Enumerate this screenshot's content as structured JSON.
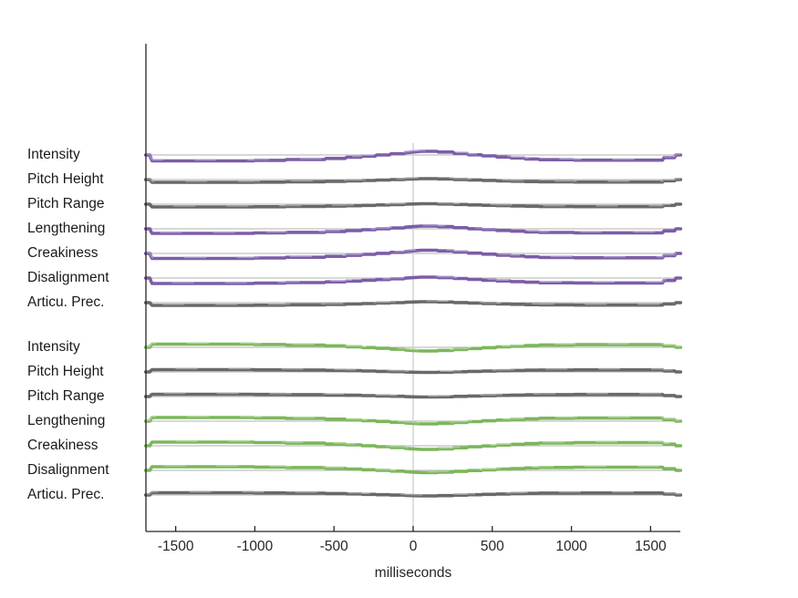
{
  "figure": {
    "xlabel": "milliseconds",
    "background": "#ffffff"
  },
  "colors": {
    "purple": "#7C5DA7",
    "purple_light": "#A594C9",
    "green": "#7BB75A",
    "green_light": "#AACF96",
    "gray": "#696969",
    "gray_light": "#9E9E9E",
    "reference_line": "#B0B0B0",
    "zero_line": "#D6D6D6",
    "axis": "#262626",
    "text": "#262626"
  },
  "chart_data": {
    "type": "line",
    "title": "",
    "xlabel": "milliseconds",
    "x_unit": "ms",
    "x_range": [
      -1690,
      1690
    ],
    "x_ticks": [
      -1500,
      -1000,
      -500,
      0,
      500,
      1000,
      1500
    ],
    "y_axis": "categorical feature rows; each series is drawn relative to its own thin gray reference line (offset in relative units, positive = above reference)",
    "zero_marker_x": 0,
    "grid": "off",
    "legend": "none",
    "step_profile": [
      [
        -1640,
        0
      ],
      [
        -1010,
        0
      ],
      [
        -1000,
        0.06
      ],
      [
        -810,
        0.06
      ],
      [
        -800,
        0.14
      ],
      [
        -560,
        0.14
      ],
      [
        -550,
        0.26
      ],
      [
        -430,
        0.26
      ],
      [
        -420,
        0.38
      ],
      [
        -330,
        0.38
      ],
      [
        -320,
        0.5
      ],
      [
        -240,
        0.5
      ],
      [
        -230,
        0.62
      ],
      [
        -150,
        0.62
      ],
      [
        -140,
        0.74
      ],
      [
        -60,
        0.74
      ],
      [
        -50,
        0.85
      ],
      [
        0,
        0.92
      ],
      [
        50,
        1
      ],
      [
        150,
        1
      ],
      [
        160,
        0.92
      ],
      [
        250,
        0.92
      ],
      [
        260,
        0.78
      ],
      [
        340,
        0.78
      ],
      [
        350,
        0.64
      ],
      [
        430,
        0.64
      ],
      [
        440,
        0.52
      ],
      [
        520,
        0.52
      ],
      [
        530,
        0.4
      ],
      [
        610,
        0.4
      ],
      [
        620,
        0.3
      ],
      [
        700,
        0.3
      ],
      [
        710,
        0.2
      ],
      [
        790,
        0.2
      ],
      [
        800,
        0.12
      ],
      [
        1010,
        0.12
      ],
      [
        1020,
        0.08
      ],
      [
        1575,
        0.08
      ]
    ],
    "series": [
      {
        "label": "Intensity",
        "group": "upper",
        "color": "purple",
        "tail": -6.5,
        "peak": 4
      },
      {
        "label": "Pitch Height",
        "group": "upper",
        "color": "gray",
        "tail": -3,
        "peak": 1
      },
      {
        "label": "Pitch Range",
        "group": "upper",
        "color": "gray",
        "tail": -3,
        "peak": 0.5
      },
      {
        "label": "Lengthening",
        "group": "upper",
        "color": "purple",
        "tail": -5,
        "peak": 3
      },
      {
        "label": "Creakiness",
        "group": "upper",
        "color": "purple",
        "tail": -5.5,
        "peak": 3.5
      },
      {
        "label": "Disalignment",
        "group": "upper",
        "color": "purple",
        "tail": -6,
        "peak": 1
      },
      {
        "label": "Articu. Prec.",
        "group": "upper",
        "color": "gray",
        "tail": -3,
        "peak": 1
      },
      {
        "label": "Intensity",
        "group": "lower",
        "color": "green",
        "tail": 3.5,
        "peak": -4
      },
      {
        "label": "Pitch Height",
        "group": "lower",
        "color": "gray",
        "tail": 2.5,
        "peak": -0.5
      },
      {
        "label": "Pitch Range",
        "group": "lower",
        "color": "gray",
        "tail": 2.5,
        "peak": -0.5
      },
      {
        "label": "Lengthening",
        "group": "lower",
        "color": "green",
        "tail": 4,
        "peak": -3
      },
      {
        "label": "Creakiness",
        "group": "lower",
        "color": "green",
        "tail": 4,
        "peak": -4
      },
      {
        "label": "Disalignment",
        "group": "lower",
        "color": "green",
        "tail": 4,
        "peak": -2.5
      },
      {
        "label": "Articu. Prec.",
        "group": "lower",
        "color": "gray",
        "tail": 2.5,
        "peak": -1
      }
    ]
  }
}
